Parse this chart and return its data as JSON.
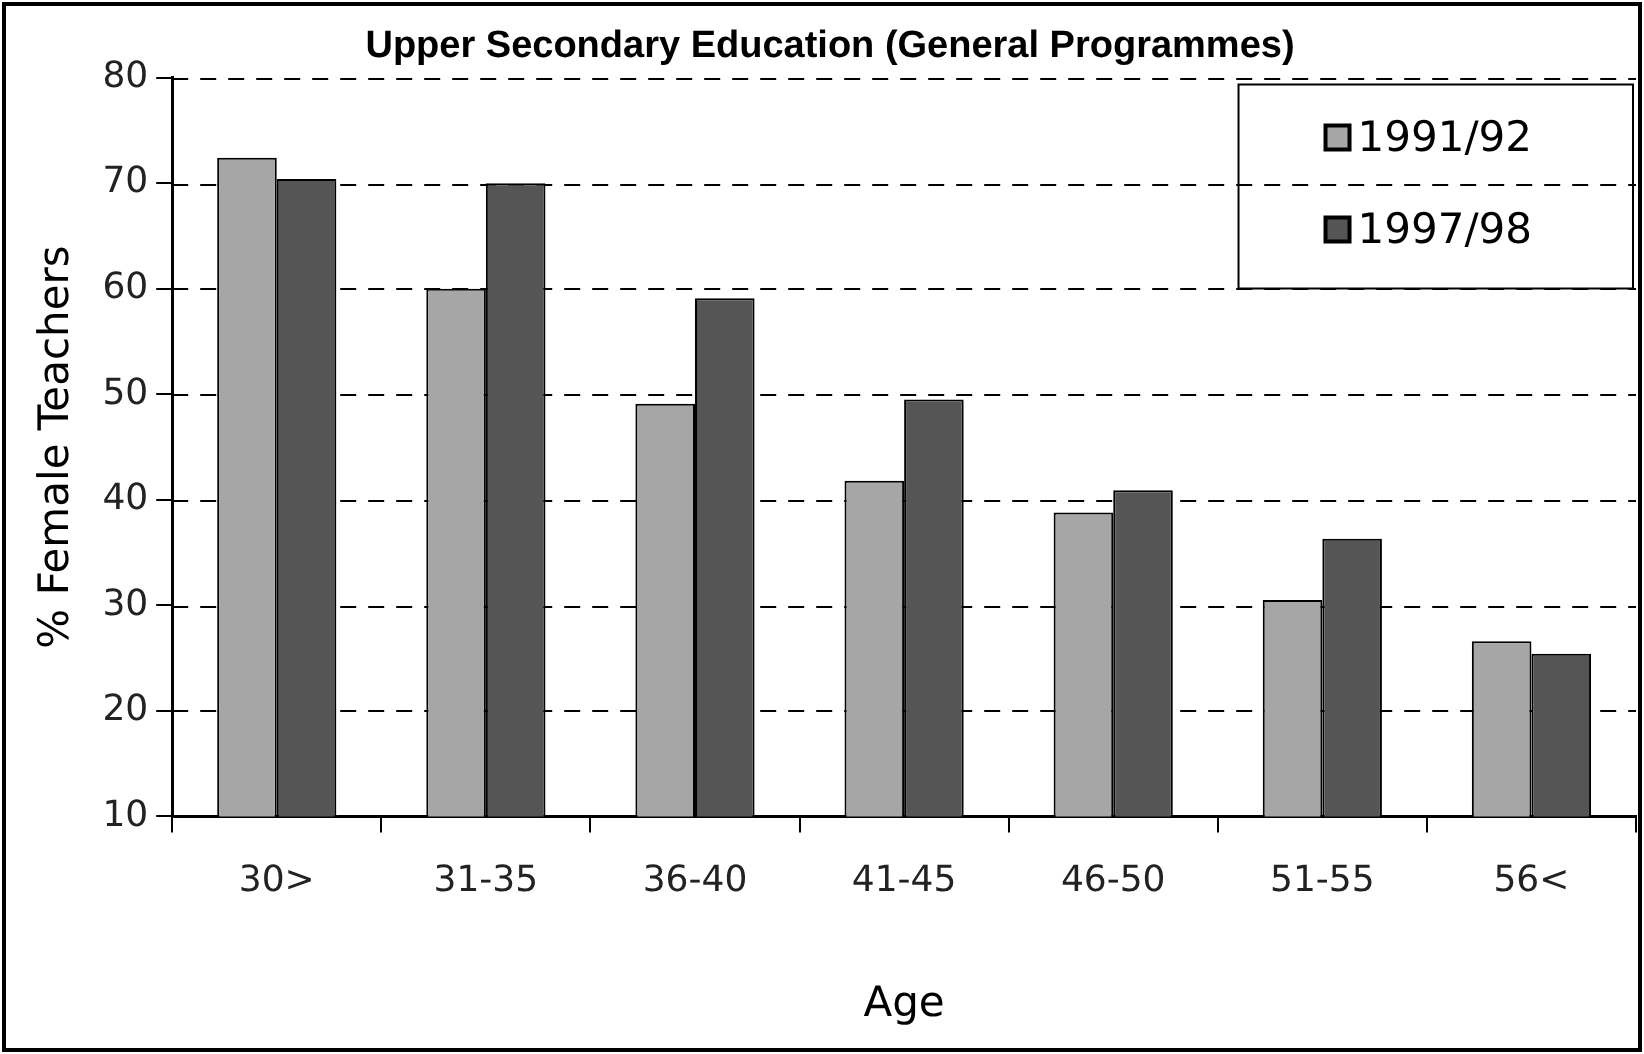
{
  "chart_data": {
    "type": "bar",
    "title": "Upper Secondary Education (General Programmes)",
    "xlabel": "Age",
    "ylabel": "% Female Teachers",
    "categories": [
      "30>",
      "31-35",
      "36-40",
      "41-45",
      "46-50",
      "51-55",
      "56<"
    ],
    "series": [
      {
        "name": "1991/92",
        "color": "#a6a6a6",
        "values": [
          72.4,
          60,
          49.1,
          41.8,
          38.8,
          30.5,
          26.6
        ]
      },
      {
        "name": "1997/98",
        "color": "#555555",
        "values": [
          70.4,
          70,
          59.1,
          49.5,
          40.9,
          36.3,
          25.4
        ]
      }
    ],
    "ylim": [
      10,
      80
    ],
    "yticks": [
      10,
      20,
      30,
      40,
      50,
      60,
      70,
      80
    ],
    "grid": "y",
    "legend": "top right"
  }
}
